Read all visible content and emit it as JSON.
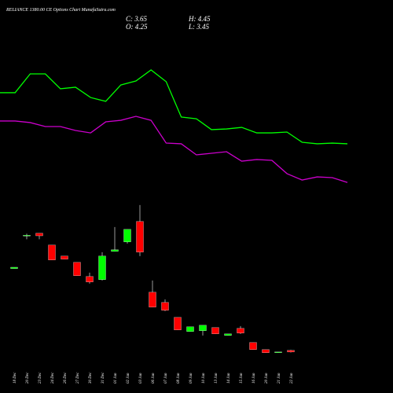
{
  "chart_data": [
    {
      "type": "line",
      "ylim": [
        0,
        100
      ],
      "series": [
        {
          "color": "#00ff00",
          "values": [
            67.8,
            67.8,
            81.1,
            81.1,
            70.6,
            71.7,
            64.4,
            61.7,
            73.3,
            76.1,
            83.9,
            75.6,
            50.6,
            49.4,
            41.7,
            42.2,
            43.3,
            39.4,
            39.4,
            40,
            32.8,
            31.7,
            32.2,
            31.7
          ]
        },
        {
          "color": "#cc00cc",
          "values": [
            47.8,
            47.8,
            46.7,
            43.9,
            43.9,
            41.1,
            39.4,
            47.2,
            48.3,
            51.1,
            48.3,
            32.2,
            31.7,
            23.9,
            25,
            26.1,
            19.4,
            20.6,
            20,
            10.6,
            6.1,
            8.3,
            7.8,
            4.4
          ]
        }
      ]
    },
    {
      "type": "candlestick",
      "title": "RELIANCE 1380.00 CE Options Chart MunafaSutra.com",
      "ohlc_labels": [
        "C: 3.65",
        "H: 4.45",
        "O: 4.25",
        "L: 3.45"
      ],
      "categories": [
        "18 Dec",
        "20 Dec",
        "23 Dec",
        "24 Dec",
        "26 Dec",
        "27 Dec",
        "30 Dec",
        "31 Dec",
        "01 Jan",
        "02 Jan",
        "03 Jan",
        "06 Jan",
        "07 Jan",
        "08 Jan",
        "09 Jan",
        "10 Jan",
        "13 Jan",
        "14 Jan",
        "15 Jan",
        "16 Jan",
        "20 Jan",
        "21 Jan",
        "22 Jan"
      ],
      "open": [
        35.5,
        47.9,
        49,
        44.45,
        40.25,
        37.85,
        32.45,
        31.25,
        42.05,
        45.65,
        53.45,
        26.45,
        22.55,
        16.85,
        11.45,
        11.75,
        12.95,
        9.95,
        12.65,
        7.25,
        4.55,
        3.35,
        4.25
      ],
      "high": [
        36,
        48.8,
        49,
        44.45,
        40.25,
        37.85,
        33.95,
        41.75,
        51.35,
        50.45,
        59.75,
        30.95,
        23.75,
        16.85,
        13.25,
        13.85,
        12.95,
        10.55,
        13.55,
        7.25,
        4.55,
        3.65,
        4.45
      ],
      "low": [
        35.5,
        46.7,
        46.7,
        38.75,
        39.05,
        32.75,
        29.75,
        30.95,
        42.05,
        45.05,
        40.25,
        20.75,
        19.25,
        12.05,
        11.45,
        9.95,
        10.55,
        9.95,
        10.55,
        4.55,
        3.35,
        3.35,
        3.45
      ],
      "close": [
        36,
        48.2,
        48,
        38.75,
        39.05,
        32.75,
        30.35,
        40.25,
        42.65,
        50.45,
        41.75,
        20.75,
        19.55,
        12.05,
        13.25,
        13.85,
        10.55,
        10.55,
        10.85,
        4.55,
        3.35,
        3.65,
        3.65
      ],
      "up_color": "#00ff00",
      "down_color": "#ff0000",
      "ylim": [
        -3,
        63
      ]
    }
  ]
}
